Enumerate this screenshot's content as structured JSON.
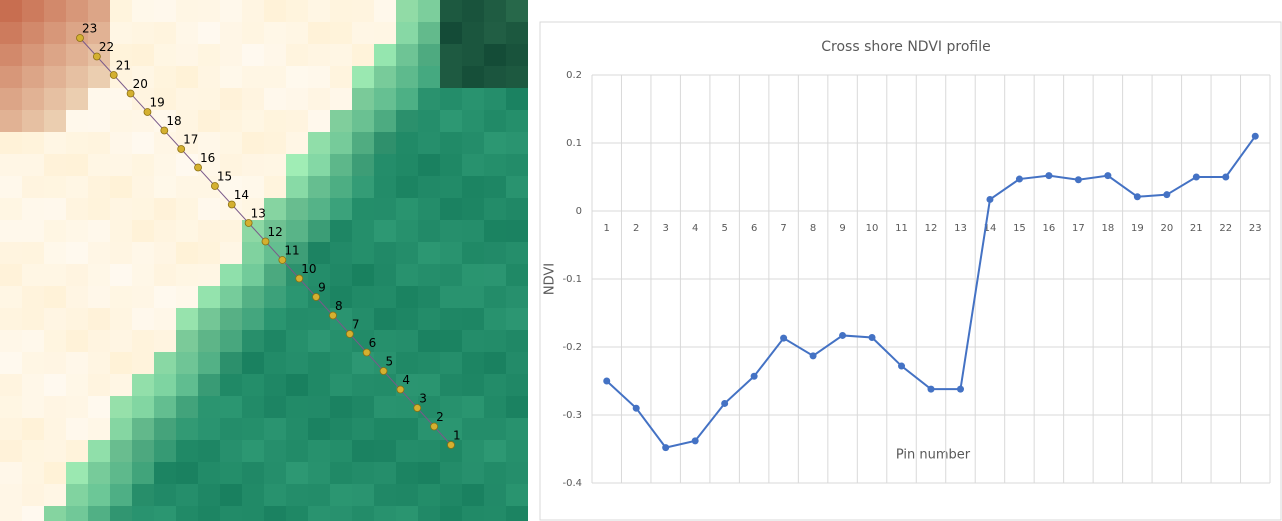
{
  "chart_data": {
    "type": "line",
    "title": "Cross shore NDVI profile",
    "x_label": "Pin number",
    "y_label": "NDVI",
    "categories": [
      "1",
      "2",
      "3",
      "4",
      "5",
      "6",
      "7",
      "8",
      "9",
      "10",
      "11",
      "12",
      "13",
      "14",
      "15",
      "16",
      "17",
      "18",
      "19",
      "20",
      "21",
      "22",
      "23"
    ],
    "values": [
      -0.25,
      -0.29,
      -0.348,
      -0.338,
      -0.283,
      -0.243,
      -0.187,
      -0.213,
      -0.183,
      -0.186,
      -0.228,
      -0.262,
      -0.262,
      0.017,
      0.047,
      0.052,
      0.046,
      0.052,
      0.021,
      0.024,
      0.05,
      0.05,
      0.11
    ],
    "color": "#4472c4",
    "ylim": [
      -0.4,
      0.2
    ],
    "yticks": [
      0.2,
      0.1,
      0,
      -0.1,
      -0.2,
      -0.3,
      -0.4
    ],
    "grid": true
  }
}
